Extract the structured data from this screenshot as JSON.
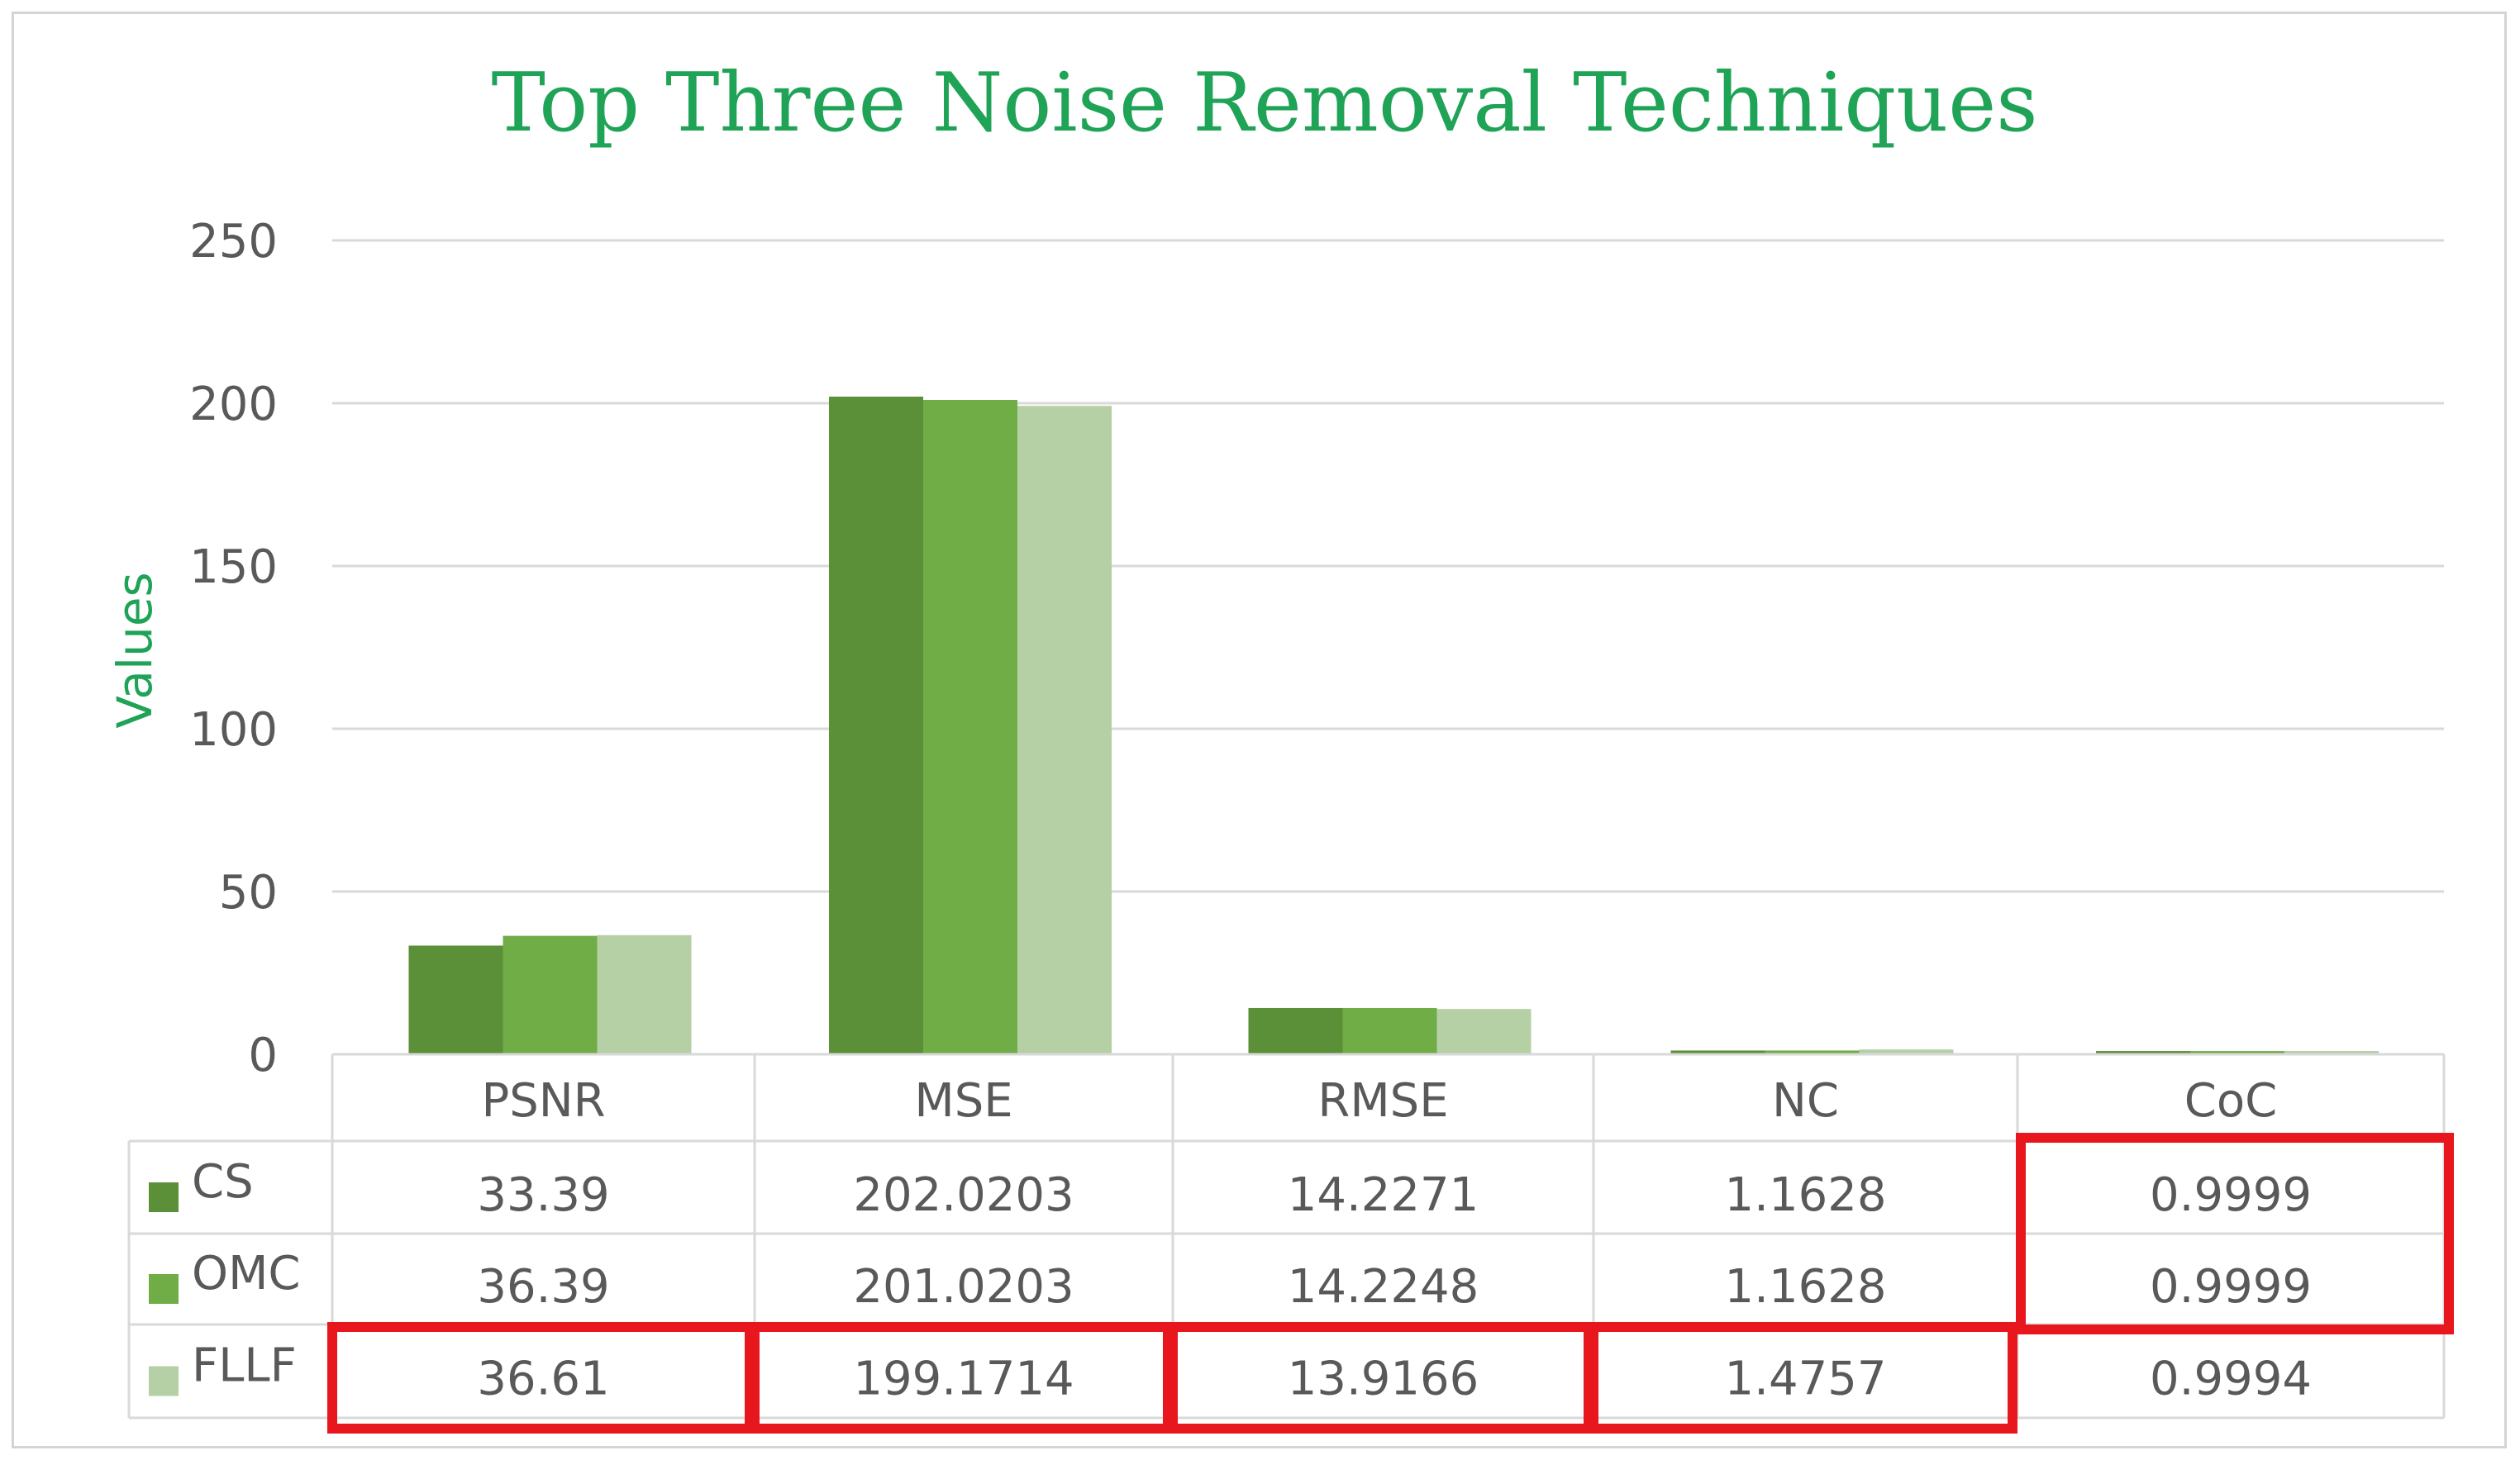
{
  "chart_data": {
    "type": "bar",
    "title": "Top Three Noise Removal Techniques",
    "xlabel": "",
    "ylabel": "Values",
    "ylim": [
      0,
      250
    ],
    "yticks": [
      0,
      50,
      100,
      150,
      200,
      250
    ],
    "grid": true,
    "legend_placement": "data-table",
    "categories": [
      "PSNR",
      "MSE",
      "RMSE",
      "NC",
      "CoC"
    ],
    "series": [
      {
        "name": "CS",
        "color": "#5b8f38",
        "values": [
          33.39,
          202.0203,
          14.2271,
          1.1628,
          0.9999
        ],
        "labels": [
          "33.39",
          "202.0203",
          "14.2271",
          "1.1628",
          "0.9999"
        ]
      },
      {
        "name": "OMC",
        "color": "#71ad47",
        "values": [
          36.39,
          201.0203,
          14.2248,
          1.1628,
          0.9999
        ],
        "labels": [
          "36.39",
          "201.0203",
          "14.2248",
          "1.1628",
          "0.9999"
        ]
      },
      {
        "name": "FLLF",
        "color": "#b5d0a5",
        "values": [
          36.61,
          199.1714,
          13.9166,
          1.4757,
          0.9994
        ],
        "labels": [
          "36.61",
          "199.1714",
          "13.9166",
          "1.4757",
          "0.9994"
        ]
      }
    ],
    "highlight_color": "#e8171e",
    "title_color": "#1fa356"
  }
}
